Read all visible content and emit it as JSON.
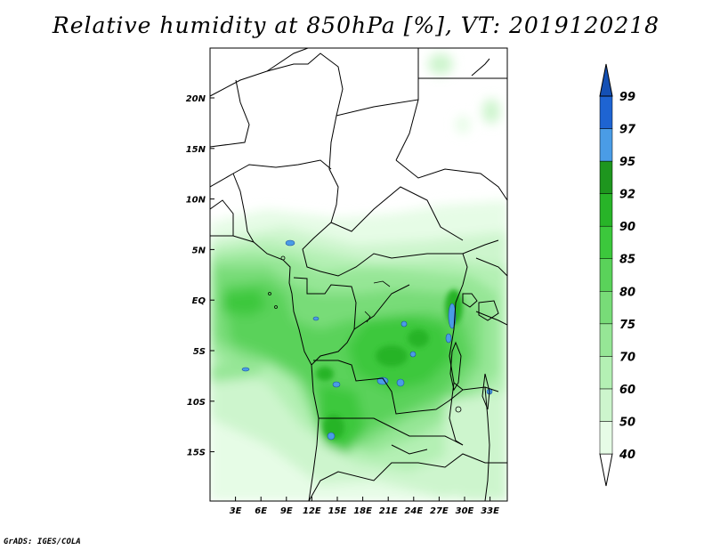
{
  "title": "Relative humidity at 850hPa [%], VT: 2019120218",
  "credit": "GrADS: IGES/COLA",
  "map": {
    "lon_range": [
      0,
      35
    ],
    "lat_range": [
      -20,
      25
    ],
    "x_ticks": [
      "3E",
      "6E",
      "9E",
      "12E",
      "15E",
      "18E",
      "21E",
      "24E",
      "27E",
      "30E",
      "33E"
    ],
    "y_ticks": [
      "20N",
      "15N",
      "10N",
      "5N",
      "EQ",
      "5S",
      "10S",
      "15S"
    ]
  },
  "colorbar": {
    "levels": [
      "40",
      "50",
      "60",
      "70",
      "75",
      "80",
      "85",
      "90",
      "92",
      "95",
      "97",
      "99"
    ],
    "colors": [
      "#ffffff",
      "#e6fce6",
      "#cdf5cd",
      "#b4f0b4",
      "#96e696",
      "#78dc78",
      "#5ad25a",
      "#3cc83c",
      "#28b428",
      "#1e961e",
      "#4a9ce6",
      "#1e64d2",
      "#1450b4"
    ]
  },
  "colors": {
    "frame": "#000000",
    "border": "#000000",
    "high_humidity": "#4a9ce6"
  }
}
